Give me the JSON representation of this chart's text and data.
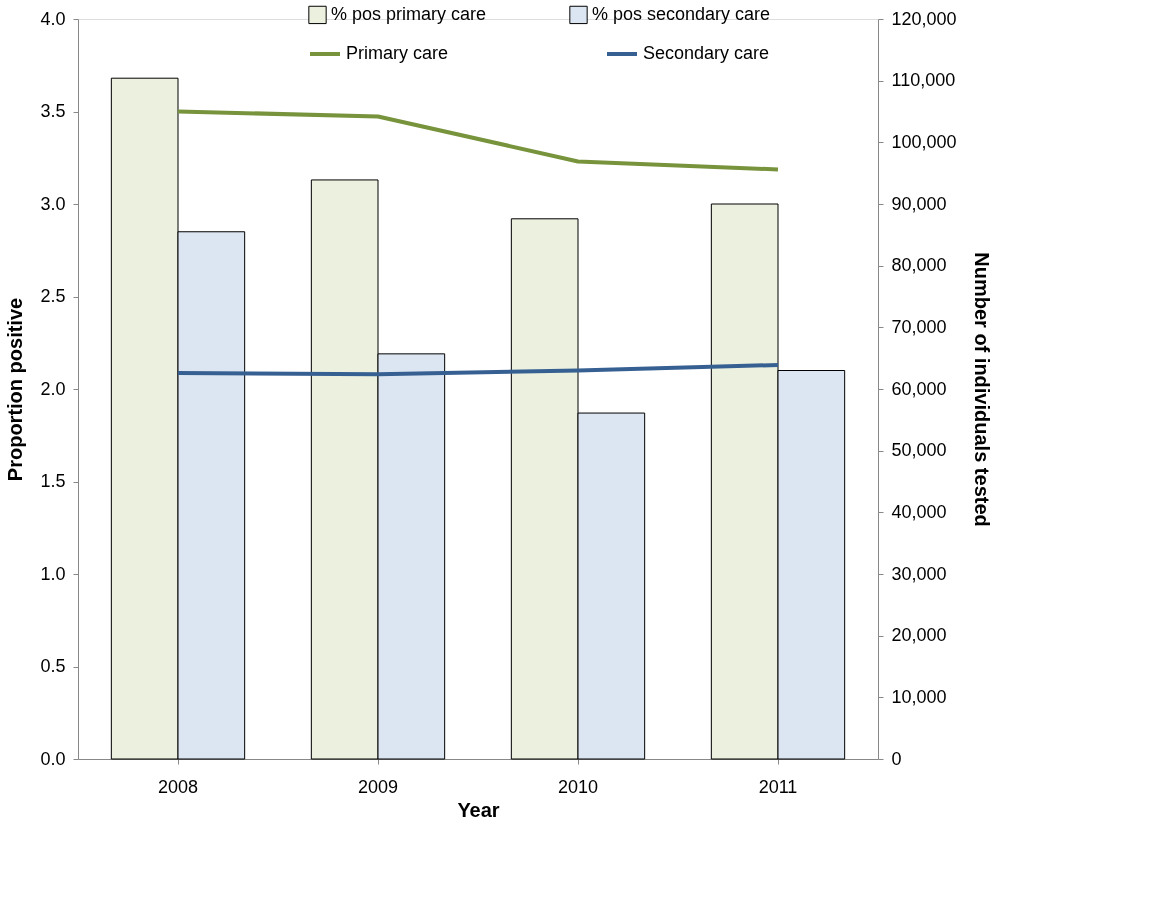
{
  "chart_data": {
    "type": "bar",
    "xlabel": "Year",
    "ylabel": "Proportion positive",
    "y2label": "Number of individuals tested",
    "categories": [
      "2008",
      "2009",
      "2010",
      "2011"
    ],
    "series": [
      {
        "name": "% pos primary care",
        "type": "bar",
        "color": "#ebf1de",
        "values": [
          3.68,
          3.13,
          2.92,
          3.0
        ]
      },
      {
        "name": "% pos secondary care",
        "type": "bar",
        "color": "#dce6f2",
        "values": [
          2.85,
          2.19,
          1.87,
          2.1
        ]
      },
      {
        "name": "Primary care",
        "type": "line",
        "axis": "y2",
        "color": "#77933c",
        "values": [
          105000,
          104200,
          96900,
          95600
        ]
      },
      {
        "name": "Secondary care",
        "type": "line",
        "axis": "y2",
        "color": "#376092",
        "values": [
          62600,
          62400,
          63000,
          63900
        ]
      }
    ],
    "ylim": [
      0,
      4.0
    ],
    "yticks": [
      {
        "value": 0,
        "label": "0.0"
      },
      {
        "value": 0.5,
        "label": "0.5"
      },
      {
        "value": 1,
        "label": "1.0"
      },
      {
        "value": 1.5,
        "label": "1.5"
      },
      {
        "value": 2,
        "label": "2.0"
      },
      {
        "value": 2.5,
        "label": "2.5"
      },
      {
        "value": 3,
        "label": "3.0"
      },
      {
        "value": 3.5,
        "label": "3.5"
      },
      {
        "value": 4,
        "label": "4.0"
      }
    ],
    "y2lim": [
      0,
      120000
    ],
    "y2ticks": [
      0,
      {
        "value": 10000,
        "label": "10,000"
      },
      {
        "value": 20000,
        "label": "20,000"
      },
      {
        "value": 30000,
        "label": "30,000"
      },
      {
        "value": 40000,
        "label": "40,000"
      },
      {
        "value": 50000,
        "label": "50,000"
      },
      {
        "value": 60000,
        "label": "60,000"
      },
      {
        "value": 70000,
        "label": "70,000"
      },
      {
        "value": 80000,
        "label": "80,000"
      },
      {
        "value": 90000,
        "label": "90,000"
      },
      {
        "value": 100000,
        "label": "100,000"
      },
      {
        "value": 110000,
        "label": "110,000"
      },
      {
        "value": 120000,
        "label": "120,000"
      }
    ],
    "grid": false,
    "legend": "top",
    "line_style": "solid",
    "marker": "none"
  }
}
